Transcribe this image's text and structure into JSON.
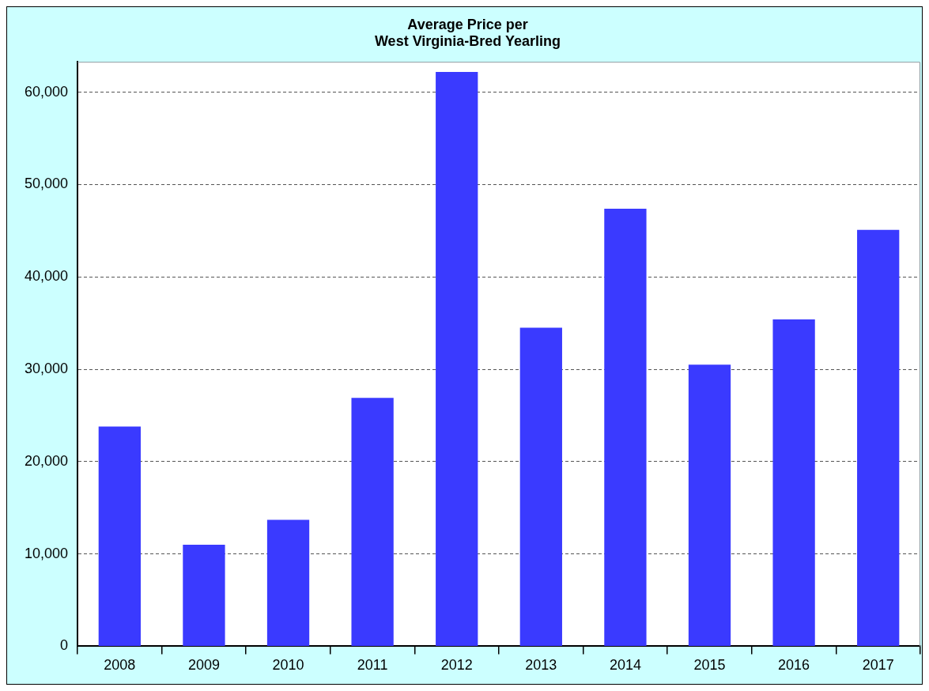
{
  "chart_data": {
    "type": "bar",
    "title": "Average Price per\nWest Virginia-Bred Yearling",
    "categories": [
      "2008",
      "2009",
      "2010",
      "2011",
      "2012",
      "2013",
      "2014",
      "2015",
      "2016",
      "2017"
    ],
    "values": [
      23800,
      11000,
      13700,
      26900,
      62200,
      34500,
      47400,
      30500,
      35400,
      45100
    ],
    "color": "#3a3aff",
    "ylim": [
      0,
      63300
    ],
    "yticks": [
      0,
      {
        "value": 10000,
        "label": "10,000"
      },
      {
        "value": 20000,
        "label": "20,000"
      },
      {
        "value": 30000,
        "label": "30,000"
      },
      {
        "value": 40000,
        "label": "40,000"
      },
      {
        "value": 50000,
        "label": "50,000"
      },
      {
        "value": 60000,
        "label": "60,000"
      }
    ],
    "grid": "y",
    "legend": false
  }
}
